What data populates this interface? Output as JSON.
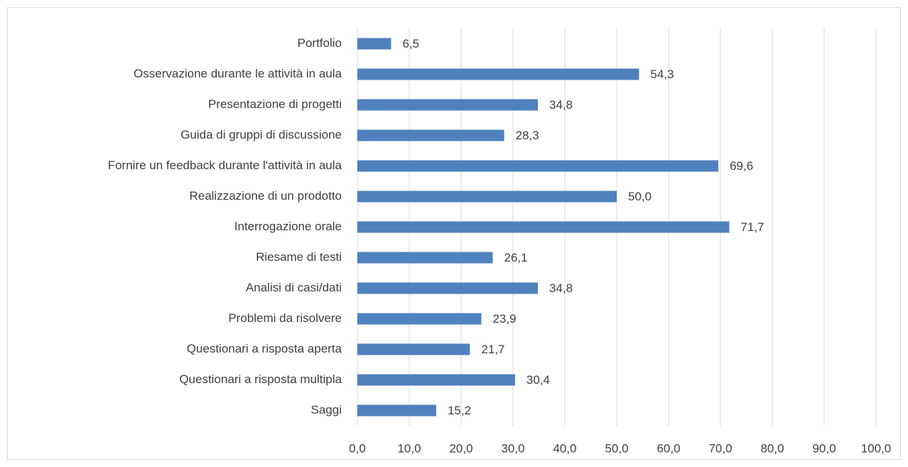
{
  "chart_data": {
    "type": "bar",
    "orientation": "horizontal",
    "categories": [
      "Portfolio",
      "Osservazione durante le attività in aula",
      "Presentazione di progetti",
      "Guida di gruppi di discussione",
      "Fornire un feedback durante l'attività in aula",
      "Realizzazione di un prodotto",
      "Interrogazione orale",
      "Riesame di testi",
      "Analisi di casi/dati",
      "Problemi da risolvere",
      "Questionari a risposta aperta",
      "Questionari a risposta multipla",
      "Saggi"
    ],
    "values": [
      6.5,
      54.3,
      34.8,
      28.3,
      69.6,
      50.0,
      71.7,
      26.1,
      34.8,
      23.9,
      21.7,
      30.4,
      15.2
    ],
    "value_labels": [
      "6,5",
      "54,3",
      "34,8",
      "28,3",
      "69,6",
      "50,0",
      "71,7",
      "26,1",
      "34,8",
      "23,9",
      "21,7",
      "30,4",
      "15,2"
    ],
    "color": "#4f81bd",
    "xlim": [
      0,
      100
    ],
    "xticks": [
      {
        "value": 0,
        "label": "0,0"
      },
      {
        "value": 10,
        "label": "10,0"
      },
      {
        "value": 20,
        "label": "20,0"
      },
      {
        "value": 30,
        "label": "30,0"
      },
      {
        "value": 40,
        "label": "40,0"
      },
      {
        "value": 50,
        "label": "50,0"
      },
      {
        "value": 60,
        "label": "60,0"
      },
      {
        "value": 70,
        "label": "70,0"
      },
      {
        "value": 80,
        "label": "80,0"
      },
      {
        "value": 90,
        "label": "90,0"
      },
      {
        "value": 100,
        "label": "100,0"
      }
    ],
    "grid": true
  }
}
